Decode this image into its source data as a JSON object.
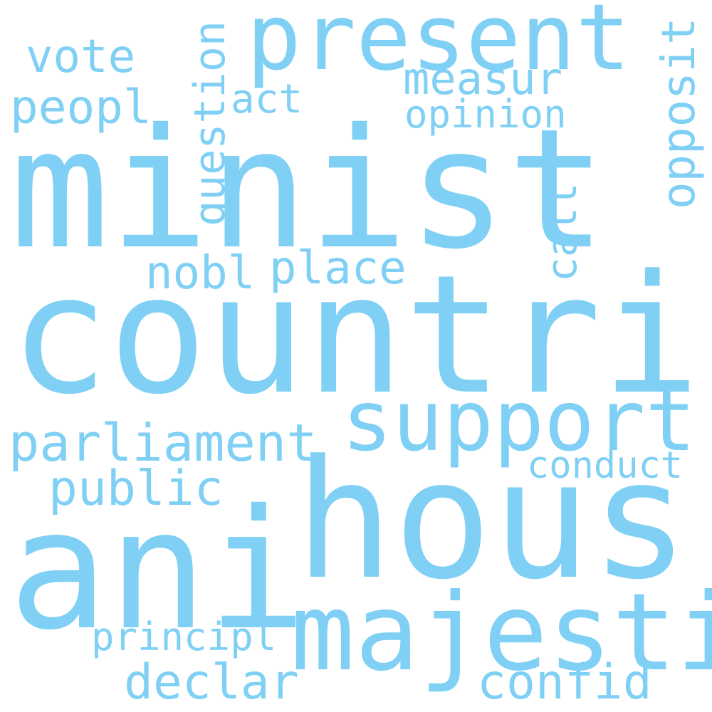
{
  "word_color": "#7fd0f4",
  "background": "#ffffff",
  "words": {
    "minist": "minist",
    "countri": "countri",
    "hous": "hous",
    "ani": "ani",
    "majesti": "majesti",
    "present": "present",
    "support": "support",
    "question": "question",
    "opposit": "opposit",
    "parliament": "parliament",
    "vote": "vote",
    "peopl": "peopl",
    "measur": "measur",
    "opinion": "opinion",
    "act": "act",
    "call": "call",
    "nobl": "nobl",
    "place": "place",
    "public": "public",
    "conduct": "conduct",
    "principl": "principl",
    "declar": "declar",
    "confid": "confid"
  }
}
